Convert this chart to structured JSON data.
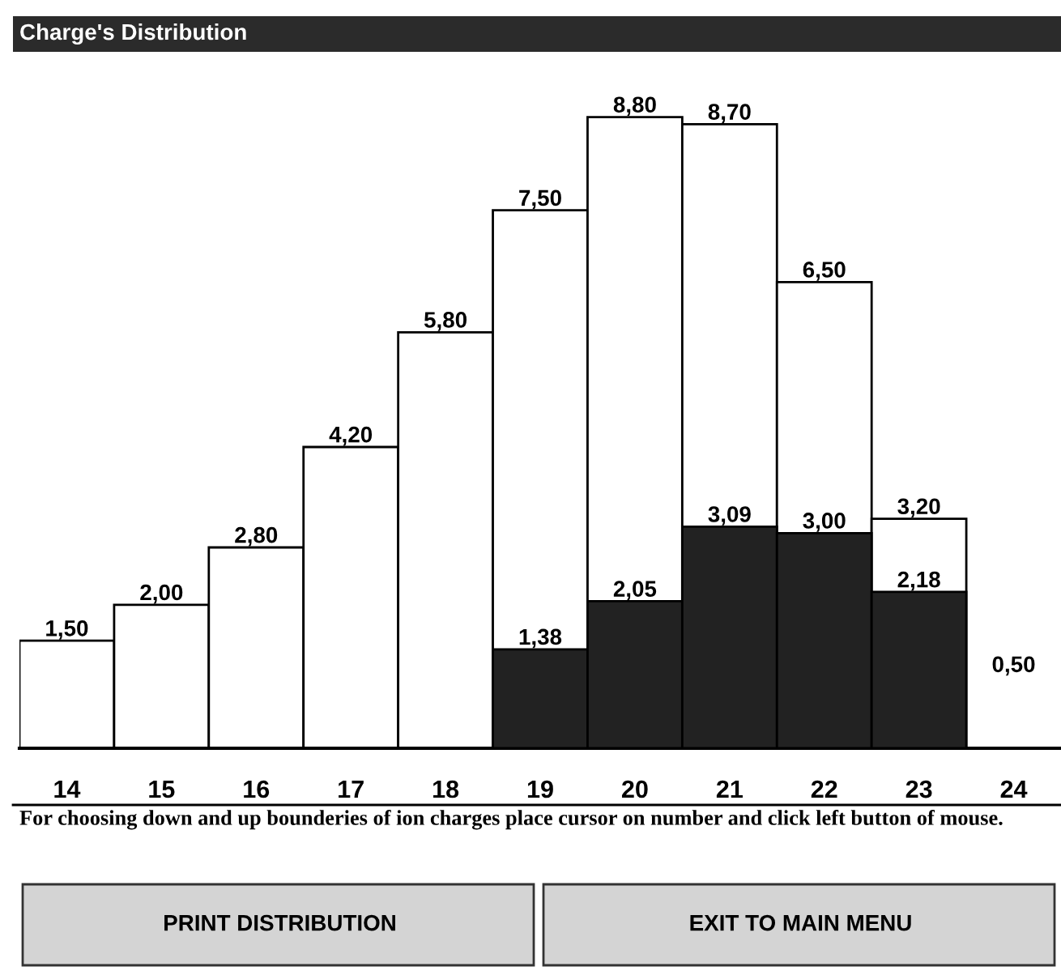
{
  "chart_data": {
    "type": "bar",
    "title": "Charge's Distribution",
    "categories": [
      "14",
      "15",
      "16",
      "17",
      "18",
      "19",
      "20",
      "21",
      "22",
      "23",
      "24"
    ],
    "series": [
      {
        "color": "#ffffff",
        "values": [
          1.5,
          2.0,
          2.8,
          4.2,
          5.8,
          7.5,
          8.8,
          8.7,
          6.5,
          3.2,
          null
        ],
        "value_labels": [
          "1,50",
          "2,00",
          "2,80",
          "4,20",
          "5,80",
          "7,50",
          "8,80",
          "8,70",
          "6,50",
          "3,20",
          null
        ]
      },
      {
        "color": "#222222",
        "values": [
          null,
          null,
          null,
          null,
          null,
          1.38,
          2.05,
          3.09,
          3.0,
          2.18,
          null
        ],
        "value_labels": [
          null,
          null,
          null,
          null,
          null,
          "1,38",
          "2,05",
          "3,09",
          "3,00",
          "2,18",
          null
        ]
      }
    ],
    "annotations": [
      "0,50",
      "For choosing down and up bounderies of ion charges place cursor on number and click left button of mouse.",
      "PRINT DISTRIBUTION",
      "EXIT TO MAIN MENU"
    ],
    "grid": false
  }
}
